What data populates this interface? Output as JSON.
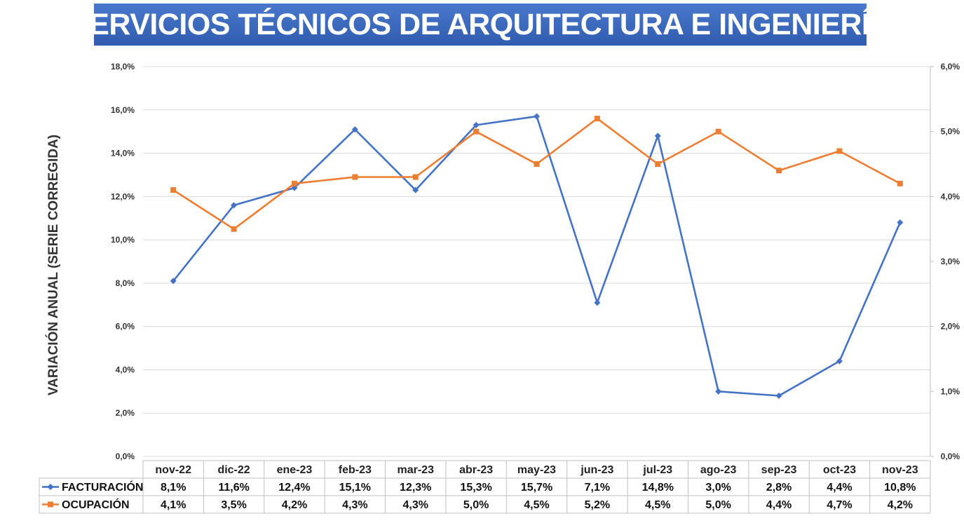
{
  "chart_data": {
    "type": "line",
    "title": "SERVICIOS TÉCNICOS DE ARQUITECTURA E INGENIERÍA",
    "ylabel": "VARIACIÓN ANUAL (SERIE CORREGIDA)",
    "categories": [
      "nov-22",
      "dic-22",
      "ene-23",
      "feb-23",
      "mar-23",
      "abr-23",
      "may-23",
      "jun-23",
      "jul-23",
      "ago-23",
      "sep-23",
      "oct-23",
      "nov-23"
    ],
    "ylim": [
      0,
      18
    ],
    "y_ticks": [
      "0,0%",
      "2,0%",
      "4,0%",
      "6,0%",
      "8,0%",
      "10,0%",
      "12,0%",
      "14,0%",
      "16,0%",
      "18,0%"
    ],
    "y2lim": [
      0,
      6
    ],
    "y2_ticks": [
      "0,0%",
      "1,0%",
      "2,0%",
      "3,0%",
      "4,0%",
      "5,0%",
      "6,0%"
    ],
    "grid": true,
    "series": [
      {
        "name": "FACTURACIÓN",
        "axis": "left",
        "color": "#4472C4",
        "marker": "diamond",
        "values": [
          8.1,
          11.6,
          12.4,
          15.1,
          12.3,
          15.3,
          15.7,
          7.1,
          14.8,
          3.0,
          2.8,
          4.4,
          10.8
        ],
        "labels": [
          "8,1%",
          "11,6%",
          "12,4%",
          "15,1%",
          "12,3%",
          "15,3%",
          "15,7%",
          "7,1%",
          "14,8%",
          "3,0%",
          "2,8%",
          "4,4%",
          "10,8%"
        ]
      },
      {
        "name": "OCUPACIÓN",
        "axis": "right",
        "color": "#ED7D31",
        "marker": "square",
        "values": [
          4.1,
          3.5,
          4.2,
          4.3,
          4.3,
          5.0,
          4.5,
          5.2,
          4.5,
          5.0,
          4.4,
          4.7,
          4.2
        ],
        "labels": [
          "4,1%",
          "3,5%",
          "4,2%",
          "4,3%",
          "4,3%",
          "5,0%",
          "4,5%",
          "5,2%",
          "4,5%",
          "5,0%",
          "4,4%",
          "4,7%",
          "4,2%"
        ]
      }
    ],
    "legend": "data-table"
  },
  "colors": {
    "title_bg_top": "#4a78cc",
    "title_bg_bottom": "#2f5cae",
    "grid": "#d9d9d9",
    "axis": "#bfbfbf"
  }
}
